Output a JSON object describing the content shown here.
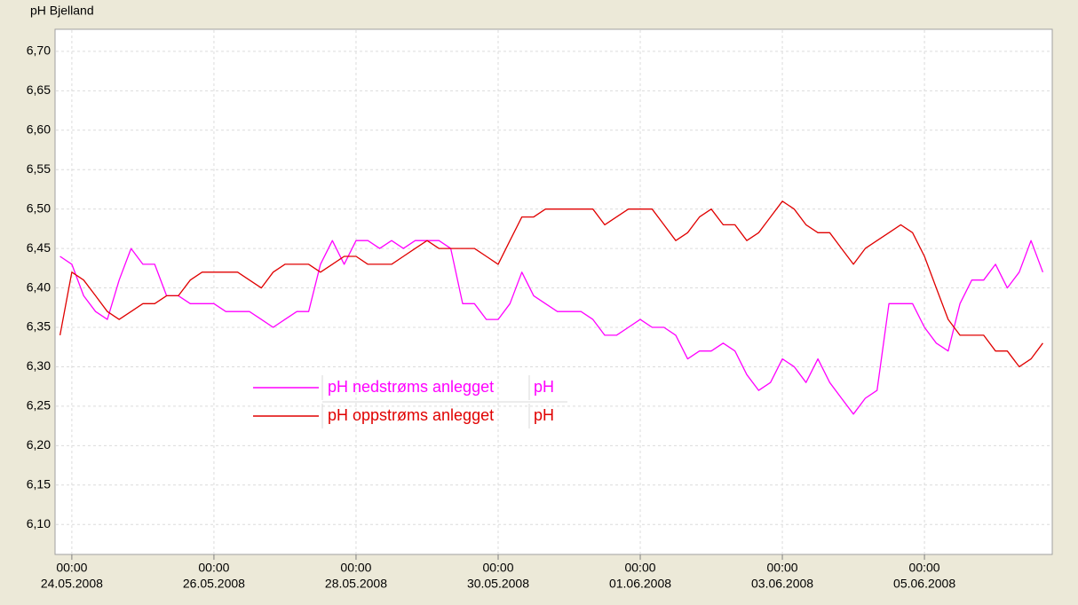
{
  "chart_data": {
    "type": "line",
    "title": "pH  Bjelland",
    "x": [
      "2008-05-23T20:00",
      "2008-05-24T00:00",
      "2008-05-24T04:00",
      "2008-05-24T08:00",
      "2008-05-24T12:00",
      "2008-05-24T16:00",
      "2008-05-24T20:00",
      "2008-05-25T00:00",
      "2008-05-25T04:00",
      "2008-05-25T08:00",
      "2008-05-25T12:00",
      "2008-05-25T16:00",
      "2008-05-25T20:00",
      "2008-05-26T00:00",
      "2008-05-26T04:00",
      "2008-05-26T08:00",
      "2008-05-26T12:00",
      "2008-05-26T16:00",
      "2008-05-26T20:00",
      "2008-05-27T00:00",
      "2008-05-27T04:00",
      "2008-05-27T08:00",
      "2008-05-27T12:00",
      "2008-05-27T16:00",
      "2008-05-27T20:00",
      "2008-05-28T00:00",
      "2008-05-28T04:00",
      "2008-05-28T08:00",
      "2008-05-28T12:00",
      "2008-05-28T16:00",
      "2008-05-28T20:00",
      "2008-05-29T00:00",
      "2008-05-29T04:00",
      "2008-05-29T08:00",
      "2008-05-29T12:00",
      "2008-05-29T16:00",
      "2008-05-29T20:00",
      "2008-05-30T00:00",
      "2008-05-30T04:00",
      "2008-05-30T08:00",
      "2008-05-30T12:00",
      "2008-05-30T16:00",
      "2008-05-30T20:00",
      "2008-05-31T00:00",
      "2008-05-31T04:00",
      "2008-05-31T08:00",
      "2008-05-31T12:00",
      "2008-05-31T16:00",
      "2008-05-31T20:00",
      "2008-06-01T00:00",
      "2008-06-01T04:00",
      "2008-06-01T08:00",
      "2008-06-01T12:00",
      "2008-06-01T16:00",
      "2008-06-01T20:00",
      "2008-06-02T00:00",
      "2008-06-02T04:00",
      "2008-06-02T08:00",
      "2008-06-02T12:00",
      "2008-06-02T16:00",
      "2008-06-02T20:00",
      "2008-06-03T00:00",
      "2008-06-03T04:00",
      "2008-06-03T08:00",
      "2008-06-03T12:00",
      "2008-06-03T16:00",
      "2008-06-03T20:00",
      "2008-06-04T00:00",
      "2008-06-04T04:00",
      "2008-06-04T08:00",
      "2008-06-04T12:00",
      "2008-06-04T16:00",
      "2008-06-04T20:00",
      "2008-06-05T00:00",
      "2008-06-05T04:00",
      "2008-06-05T08:00",
      "2008-06-05T12:00",
      "2008-06-05T16:00",
      "2008-06-05T20:00",
      "2008-06-06T00:00",
      "2008-06-06T04:00",
      "2008-06-06T08:00",
      "2008-06-06T12:00",
      "2008-06-06T16:00"
    ],
    "series": [
      {
        "name": "pH nedstrøms anlegget",
        "unit": "pH",
        "color": "#ff00ff",
        "values": [
          6.44,
          6.43,
          6.39,
          6.37,
          6.36,
          6.41,
          6.45,
          6.43,
          6.43,
          6.39,
          6.39,
          6.38,
          6.38,
          6.38,
          6.37,
          6.37,
          6.37,
          6.36,
          6.35,
          6.36,
          6.37,
          6.37,
          6.43,
          6.46,
          6.43,
          6.46,
          6.46,
          6.45,
          6.46,
          6.45,
          6.46,
          6.46,
          6.46,
          6.45,
          6.38,
          6.38,
          6.36,
          6.36,
          6.38,
          6.42,
          6.39,
          6.38,
          6.37,
          6.37,
          6.37,
          6.36,
          6.34,
          6.34,
          6.35,
          6.36,
          6.35,
          6.35,
          6.34,
          6.31,
          6.32,
          6.32,
          6.33,
          6.32,
          6.29,
          6.27,
          6.28,
          6.31,
          6.3,
          6.28,
          6.31,
          6.28,
          6.26,
          6.24,
          6.26,
          6.27,
          6.38,
          6.38,
          6.38,
          6.35,
          6.33,
          6.32,
          6.38,
          6.41,
          6.41,
          6.43,
          6.4,
          6.42,
          6.46,
          6.42
        ]
      },
      {
        "name": "pH oppstrøms anlegget",
        "unit": "pH",
        "color": "#e00000",
        "values": [
          6.34,
          6.42,
          6.41,
          6.39,
          6.37,
          6.36,
          6.37,
          6.38,
          6.38,
          6.39,
          6.39,
          6.41,
          6.42,
          6.42,
          6.42,
          6.42,
          6.41,
          6.4,
          6.42,
          6.43,
          6.43,
          6.43,
          6.42,
          6.43,
          6.44,
          6.44,
          6.43,
          6.43,
          6.43,
          6.44,
          6.45,
          6.46,
          6.45,
          6.45,
          6.45,
          6.45,
          6.44,
          6.43,
          6.46,
          6.49,
          6.49,
          6.5,
          6.5,
          6.5,
          6.5,
          6.5,
          6.48,
          6.49,
          6.5,
          6.5,
          6.5,
          6.48,
          6.46,
          6.47,
          6.49,
          6.5,
          6.48,
          6.48,
          6.46,
          6.47,
          6.49,
          6.51,
          6.5,
          6.48,
          6.47,
          6.47,
          6.45,
          6.43,
          6.45,
          6.46,
          6.47,
          6.48,
          6.47,
          6.44,
          6.4,
          6.36,
          6.34,
          6.34,
          6.34,
          6.32,
          6.32,
          6.3,
          6.31,
          6.33
        ]
      }
    ],
    "xlim": [
      "2008-05-23T18:20",
      "2008-06-06T19:10"
    ],
    "xticks": [
      {
        "value": "2008-05-24T00:00",
        "label": [
          "00:00",
          "24.05.2008"
        ]
      },
      {
        "value": "2008-05-26T00:00",
        "label": [
          "00:00",
          "26.05.2008"
        ]
      },
      {
        "value": "2008-05-28T00:00",
        "label": [
          "00:00",
          "28.05.2008"
        ]
      },
      {
        "value": "2008-05-30T00:00",
        "label": [
          "00:00",
          "30.05.2008"
        ]
      },
      {
        "value": "2008-06-01T00:00",
        "label": [
          "00:00",
          "01.06.2008"
        ]
      },
      {
        "value": "2008-06-03T00:00",
        "label": [
          "00:00",
          "03.06.2008"
        ]
      },
      {
        "value": "2008-06-05T00:00",
        "label": [
          "00:00",
          "05.06.2008"
        ]
      }
    ],
    "ylim": [
      6.062,
      6.728
    ],
    "yticks": [
      {
        "value": 6.7,
        "label": "6,70"
      },
      {
        "value": 6.65,
        "label": "6,65"
      },
      {
        "value": 6.6,
        "label": "6,60"
      },
      {
        "value": 6.55,
        "label": "6,55"
      },
      {
        "value": 6.5,
        "label": "6,50"
      },
      {
        "value": 6.45,
        "label": "6,45"
      },
      {
        "value": 6.4,
        "label": "6,40"
      },
      {
        "value": 6.35,
        "label": "6,35"
      },
      {
        "value": 6.3,
        "label": "6,30"
      },
      {
        "value": 6.25,
        "label": "6,25"
      },
      {
        "value": 6.2,
        "label": "6,20"
      },
      {
        "value": 6.15,
        "label": "6,15"
      },
      {
        "value": 6.1,
        "label": "6,10"
      }
    ],
    "grid": true
  }
}
